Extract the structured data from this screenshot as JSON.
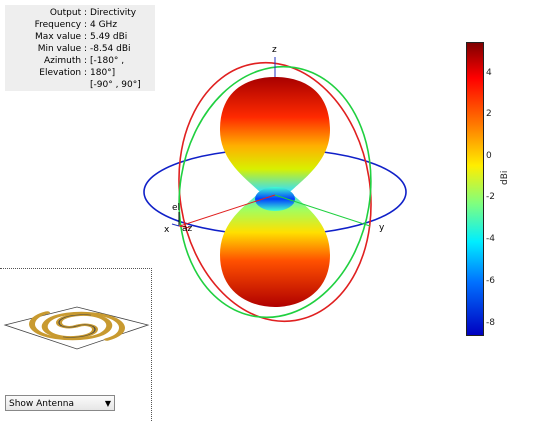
{
  "info": {
    "rows": [
      {
        "key": "Output :",
        "value": "Directivity"
      },
      {
        "key": "Frequency :",
        "value": "4 GHz"
      },
      {
        "key": "Max value :",
        "value": "5.49 dBi"
      },
      {
        "key": "Min value :",
        "value": "-8.54 dBi"
      },
      {
        "key": "Azimuth :",
        "value": "[-180° ,"
      },
      {
        "key": "Elevation :",
        "value": "180°]"
      },
      {
        "key": "",
        "value": "[-90° , 90°]"
      }
    ]
  },
  "axes": {
    "x": "x",
    "y": "y",
    "z": "z",
    "el": "el",
    "az": "az"
  },
  "colorbar": {
    "label": "dBi",
    "ticks": [
      "4",
      "2",
      "0",
      "-2",
      "-4",
      "-6",
      "-8"
    ],
    "tick_values": [
      4,
      2,
      0,
      -2,
      -4,
      -6,
      -8
    ],
    "range": [
      -8.54,
      5.49
    ]
  },
  "antenna_select": {
    "value": "Show Antenna"
  }
}
